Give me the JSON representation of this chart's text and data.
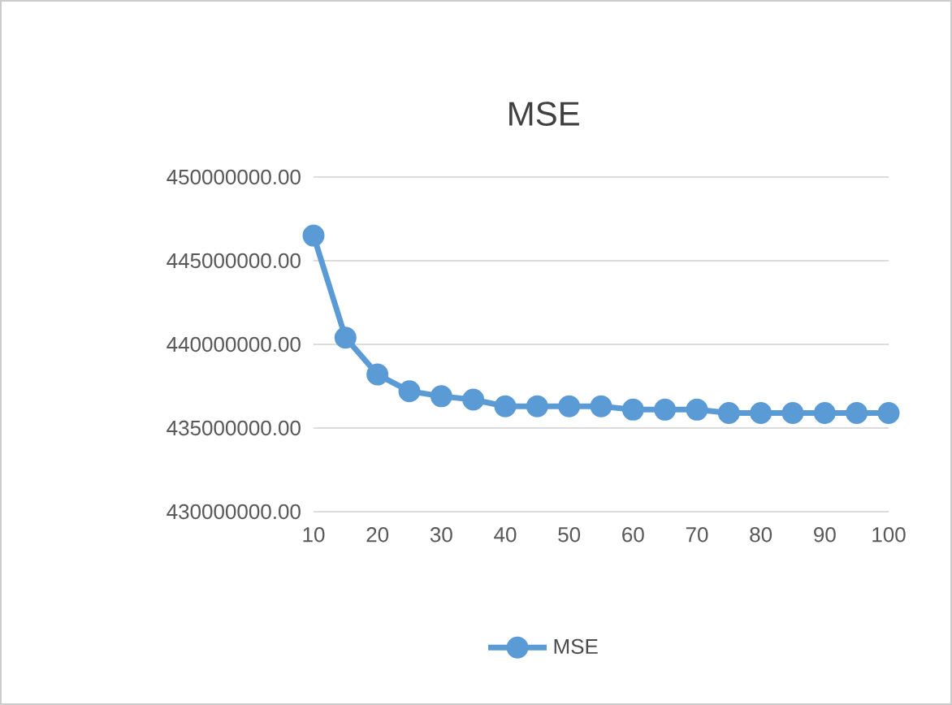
{
  "chart_data": {
    "type": "line",
    "title": "MSE",
    "x": [
      10,
      15,
      20,
      25,
      30,
      35,
      40,
      45,
      50,
      55,
      60,
      65,
      70,
      75,
      80,
      85,
      90,
      95,
      100
    ],
    "series": [
      {
        "name": "MSE",
        "color": "#5b9bd5",
        "values": [
          446500000,
          440400000,
          438200000,
          437200000,
          436900000,
          436700000,
          436300000,
          436300000,
          436300000,
          436300000,
          436100000,
          436100000,
          436100000,
          435900000,
          435900000,
          435900000,
          435900000,
          435900000,
          435900000
        ]
      }
    ],
    "xlim": [
      10,
      100
    ],
    "xticks": [
      10,
      20,
      30,
      40,
      50,
      60,
      70,
      80,
      90,
      100
    ],
    "ylim": [
      430000000,
      450000000
    ],
    "yticks": [
      {
        "value": 430000000,
        "label": "430000000.00"
      },
      {
        "value": 435000000,
        "label": "435000000.00"
      },
      {
        "value": 440000000,
        "label": "440000000.00"
      },
      {
        "value": 445000000,
        "label": "445000000.00"
      },
      {
        "value": 450000000,
        "label": "450000000.00"
      }
    ],
    "grid": "y",
    "legend": "bottom",
    "marker": "circle",
    "line_style": "solid"
  }
}
